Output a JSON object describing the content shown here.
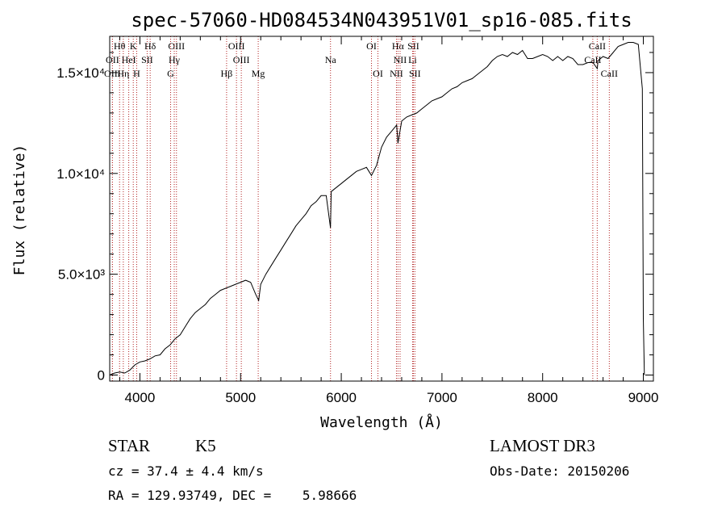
{
  "chart_data": {
    "type": "line",
    "title": "spec-57060-HD084534N043951V01_sp16-085.fits",
    "xlabel": "Wavelength (Å)",
    "ylabel": "Flux (relative)",
    "xlim": [
      3700,
      9100
    ],
    "ylim": [
      -300,
      16800
    ],
    "x_ticks": [
      {
        "value": 4000,
        "label": "4000"
      },
      {
        "value": 5000,
        "label": "5000"
      },
      {
        "value": 6000,
        "label": "6000"
      },
      {
        "value": 7000,
        "label": "7000"
      },
      {
        "value": 8000,
        "label": "8000"
      },
      {
        "value": 9000,
        "label": "9000"
      }
    ],
    "y_ticks": [
      {
        "value": 0,
        "label": "0"
      },
      {
        "value": 5000,
        "label": "5.0×10³"
      },
      {
        "value": 10000,
        "label": "1.0×10⁴"
      },
      {
        "value": 15000,
        "label": "1.5×10⁴"
      }
    ],
    "series": [
      {
        "name": "flux",
        "x": [
          3700,
          3750,
          3800,
          3850,
          3900,
          3950,
          4000,
          4050,
          4100,
          4150,
          4200,
          4250,
          4300,
          4350,
          4400,
          4450,
          4500,
          4550,
          4600,
          4650,
          4700,
          4750,
          4800,
          4850,
          4900,
          4950,
          5000,
          5050,
          5100,
          5150,
          5180,
          5200,
          5250,
          5300,
          5350,
          5400,
          5450,
          5500,
          5550,
          5600,
          5650,
          5700,
          5750,
          5800,
          5850,
          5893,
          5900,
          5950,
          6000,
          6050,
          6100,
          6150,
          6200,
          6250,
          6300,
          6350,
          6400,
          6450,
          6500,
          6550,
          6563,
          6600,
          6650,
          6700,
          6750,
          6800,
          6850,
          6900,
          6950,
          7000,
          7050,
          7100,
          7150,
          7200,
          7250,
          7300,
          7350,
          7400,
          7450,
          7500,
          7550,
          7600,
          7650,
          7700,
          7750,
          7800,
          7850,
          7900,
          7950,
          8000,
          8050,
          8100,
          8150,
          8200,
          8250,
          8300,
          8350,
          8400,
          8450,
          8500,
          8542,
          8550,
          8600,
          8650,
          8700,
          8750,
          8800,
          8850,
          8900,
          8950,
          8990,
          9000,
          9010
        ],
        "y": [
          0,
          100,
          150,
          100,
          250,
          500,
          650,
          700,
          800,
          950,
          1000,
          1300,
          1500,
          1800,
          2000,
          2400,
          2800,
          3100,
          3300,
          3500,
          3800,
          4000,
          4200,
          4300,
          4400,
          4500,
          4600,
          4700,
          4600,
          4000,
          3700,
          4500,
          5000,
          5400,
          5800,
          6200,
          6600,
          7000,
          7400,
          7700,
          8000,
          8400,
          8600,
          8900,
          8900,
          7300,
          9100,
          9300,
          9500,
          9700,
          9900,
          10100,
          10200,
          10300,
          9900,
          10400,
          11300,
          11800,
          12100,
          12400,
          11500,
          12600,
          12800,
          12900,
          13000,
          13200,
          13400,
          13600,
          13700,
          13800,
          14000,
          14200,
          14300,
          14500,
          14600,
          14700,
          14900,
          15100,
          15300,
          15600,
          15800,
          15900,
          15800,
          16000,
          15900,
          16100,
          15700,
          15700,
          15800,
          15900,
          15800,
          15600,
          15800,
          15600,
          15800,
          15700,
          15400,
          15400,
          15500,
          15500,
          15200,
          15600,
          15800,
          15700,
          16000,
          16300,
          16400,
          16500,
          16500,
          16400,
          14200,
          2800,
          0
        ]
      }
    ],
    "line_markers": [
      {
        "label": "Hθ",
        "x": 3798,
        "row": 1
      },
      {
        "label": "OII",
        "x": 3727,
        "row": 2
      },
      {
        "label": "OIII",
        "x": 3727,
        "row": 3
      },
      {
        "label": "K",
        "x": 3934,
        "row": 1
      },
      {
        "label": "HeI",
        "x": 3889,
        "row": 2
      },
      {
        "label": "Hη",
        "x": 3835,
        "row": 3
      },
      {
        "label": "SII",
        "x": 4072,
        "row": 2
      },
      {
        "label": "H",
        "x": 3968,
        "row": 3
      },
      {
        "label": "Hδ",
        "x": 4102,
        "row": 1
      },
      {
        "label": "OIII",
        "x": 4363,
        "row": 1
      },
      {
        "label": "Hγ",
        "x": 4341,
        "row": 2
      },
      {
        "label": "G",
        "x": 4305,
        "row": 3
      },
      {
        "label": "OIII",
        "x": 4959,
        "row": 1
      },
      {
        "label": "OIII",
        "x": 5007,
        "row": 2
      },
      {
        "label": "Hβ",
        "x": 4861,
        "row": 3
      },
      {
        "label": "Mg",
        "x": 5175,
        "row": 3
      },
      {
        "label": "Na",
        "x": 5893,
        "row": 2
      },
      {
        "label": "OI",
        "x": 6300,
        "row": 1
      },
      {
        "label": "OI",
        "x": 6364,
        "row": 3
      },
      {
        "label": "Hα",
        "x": 6563,
        "row": 1
      },
      {
        "label": "SII",
        "x": 6716,
        "row": 1
      },
      {
        "label": "NII",
        "x": 6584,
        "row": 2
      },
      {
        "label": "Li",
        "x": 6708,
        "row": 2
      },
      {
        "label": "NII",
        "x": 6548,
        "row": 3
      },
      {
        "label": "SII",
        "x": 6731,
        "row": 3
      },
      {
        "label": "CaII",
        "x": 8542,
        "row": 1
      },
      {
        "label": "CaII",
        "x": 8498,
        "row": 2
      },
      {
        "label": "CaII",
        "x": 8662,
        "row": 3
      }
    ]
  },
  "info": {
    "object_class": "STAR",
    "subclass": "K5",
    "survey": "LAMOST DR3",
    "cz": "cz = 37.4 ± 4.4 km/s",
    "obs_date": "Obs-Date: 20150206",
    "coords": "RA = 129.93749, DEC =    5.98666"
  }
}
